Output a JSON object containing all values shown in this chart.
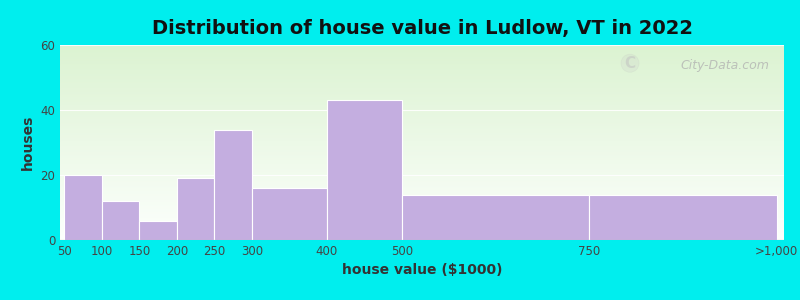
{
  "title": "Distribution of house value in Ludlow, VT in 2022",
  "xlabel": "house value ($1000)",
  "ylabel": "houses",
  "bar_left_edges": [
    50,
    100,
    150,
    200,
    250,
    300,
    400,
    500,
    750
  ],
  "bar_widths": [
    50,
    50,
    50,
    50,
    50,
    100,
    100,
    250,
    250
  ],
  "bar_heights": [
    20,
    12,
    6,
    19,
    34,
    16,
    43,
    14,
    14
  ],
  "bar_color": "#c4aee0",
  "xtick_labels": [
    "50",
    "100",
    "150",
    "200",
    "250",
    "300",
    "400",
    "500",
    "750",
    ">1,000"
  ],
  "xtick_positions": [
    50,
    100,
    150,
    200,
    250,
    300,
    400,
    500,
    750,
    1000
  ],
  "ylim": [
    0,
    60
  ],
  "yticks": [
    0,
    20,
    40,
    60
  ],
  "xlim": [
    44,
    1010
  ],
  "outer_bg": "#00EEEE",
  "watermark": "City-Data.com",
  "title_fontsize": 14,
  "axis_label_fontsize": 10,
  "tick_fontsize": 8.5
}
